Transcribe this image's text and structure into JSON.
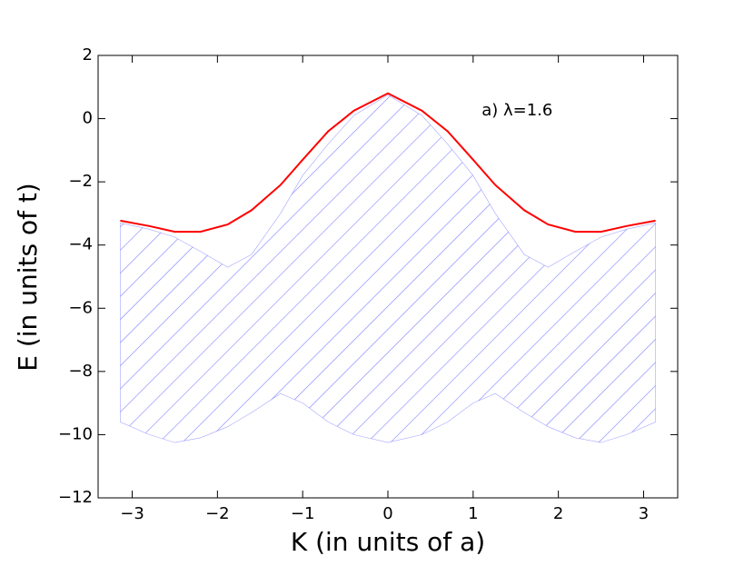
{
  "chart_data": {
    "type": "band-line",
    "xlabel": "K (in units of a)",
    "ylabel": "E (in units of t)",
    "annotation": "a) λ=1.6",
    "x": [
      -3.14,
      -2.8,
      -2.5,
      -2.2,
      -1.88,
      -1.6,
      -1.26,
      -1,
      -0.7,
      -0.4,
      0,
      0.4,
      0.7,
      1,
      1.26,
      1.6,
      1.88,
      2.2,
      2.5,
      2.8,
      3.14
    ],
    "series": [
      {
        "color": "#ff0000",
        "values": [
          -3.23,
          -3.4,
          -3.58,
          -3.58,
          -3.35,
          -2.9,
          -2.1,
          -1.3,
          -0.4,
          0.25,
          0.8,
          0.25,
          -0.4,
          -1.3,
          -2.1,
          -2.9,
          -3.35,
          -3.58,
          -3.58,
          -3.4,
          -3.23
        ]
      }
    ],
    "band": {
      "color": "#8080ff",
      "upper": [
        -3.3,
        -3.5,
        -3.75,
        -4.2,
        -4.7,
        -4.3,
        -3.0,
        -1.8,
        -0.8,
        0.1,
        0.75,
        0.1,
        -0.8,
        -1.8,
        -3.0,
        -4.3,
        -4.7,
        -4.2,
        -3.75,
        -3.5,
        -3.3
      ],
      "lower": [
        -9.6,
        -10.0,
        -10.25,
        -10.1,
        -9.75,
        -9.3,
        -8.7,
        -9.0,
        -9.6,
        -10.0,
        -10.25,
        -10.0,
        -9.6,
        -9.0,
        -8.7,
        -9.3,
        -9.75,
        -10.1,
        -10.25,
        -10.0,
        -9.6
      ]
    },
    "annotation_xy": [
      1.1,
      0.25
    ],
    "xlim": [
      -3.4,
      3.4
    ],
    "ylim": [
      -12,
      2
    ],
    "xticks": [
      {
        "value": -3,
        "label": "−3"
      },
      {
        "value": -2,
        "label": "−2"
      },
      {
        "value": -1,
        "label": "−1"
      },
      0,
      1,
      2,
      3
    ],
    "yticks": [
      {
        "value": -12,
        "label": "−12"
      },
      {
        "value": -10,
        "label": "−10"
      },
      {
        "value": -8,
        "label": "−8"
      },
      {
        "value": -6,
        "label": "−6"
      },
      {
        "value": -4,
        "label": "−4"
      },
      {
        "value": -2,
        "label": "−2"
      },
      0,
      2
    ]
  }
}
